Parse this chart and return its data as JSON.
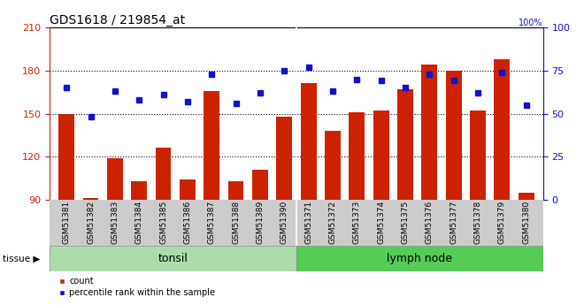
{
  "title": "GDS1618 / 219854_at",
  "samples": [
    "GSM51381",
    "GSM51382",
    "GSM51383",
    "GSM51384",
    "GSM51385",
    "GSM51386",
    "GSM51387",
    "GSM51388",
    "GSM51389",
    "GSM51390",
    "GSM51371",
    "GSM51372",
    "GSM51373",
    "GSM51374",
    "GSM51375",
    "GSM51376",
    "GSM51377",
    "GSM51378",
    "GSM51379",
    "GSM51380"
  ],
  "counts": [
    150,
    91,
    119,
    103,
    126,
    104,
    166,
    103,
    111,
    148,
    171,
    138,
    151,
    152,
    167,
    184,
    180,
    152,
    188,
    95
  ],
  "percentiles": [
    65,
    48,
    63,
    58,
    61,
    57,
    73,
    56,
    62,
    75,
    77,
    63,
    70,
    69,
    65,
    73,
    69,
    62,
    74,
    55
  ],
  "tonsil_count": 10,
  "lymph_count": 10,
  "bar_color": "#cc2200",
  "dot_color": "#1111cc",
  "tonsil_color": "#aaddaa",
  "lymph_color": "#55cc55",
  "label_bg_color": "#cccccc",
  "ymin": 90,
  "ymax": 210,
  "yticks_left": [
    90,
    120,
    150,
    180,
    210
  ],
  "yticks_right": [
    0,
    25,
    50,
    75,
    100
  ],
  "grid_values": [
    120,
    150,
    180
  ]
}
